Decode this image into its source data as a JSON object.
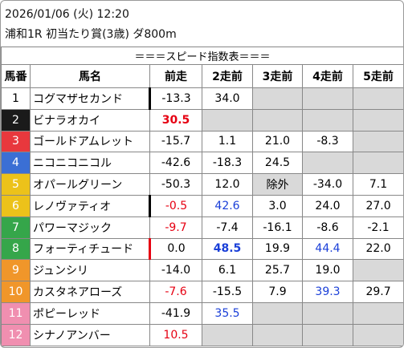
{
  "header": {
    "date": "2026/01/06 (火) 12:20",
    "race": "浦和1R 初当たり賞(3歳) ダ800m"
  },
  "table": {
    "title": "＝＝＝スピード指数表＝＝＝",
    "columns": [
      "馬番",
      "馬名",
      "前走",
      "2走前",
      "3走前",
      "4走前",
      "5走前"
    ],
    "rows": [
      {
        "number": "1",
        "frame_color": "#ffffff",
        "number_color": "#000000",
        "name": "コグマザセカンド",
        "marker": "#000000",
        "speeds": [
          "-13.3",
          "34.0",
          null,
          null,
          null
        ]
      },
      {
        "number": "2",
        "frame_color": "#1a1a1a",
        "number_color": "#ffffff",
        "name": "ビナラオカイ",
        "speeds": [
          {
            "text": "30.5",
            "color": "#e60012",
            "bold": true
          },
          null,
          null,
          null,
          null
        ]
      },
      {
        "number": "3",
        "frame_color": "#e8383d",
        "number_color": "#ffffff",
        "name": "ゴールドアムレット",
        "speeds": [
          "-15.7",
          "1.1",
          "21.0",
          "-8.3",
          null
        ]
      },
      {
        "number": "4",
        "frame_color": "#3b6fd4",
        "number_color": "#ffffff",
        "name": "ニコニコニコル",
        "speeds": [
          "-42.6",
          "-18.3",
          "24.5",
          null,
          null
        ]
      },
      {
        "number": "5",
        "frame_color": "#ecc21a",
        "number_color": "#ffffff",
        "name": "オパールグリーン",
        "speeds": [
          "-50.3",
          "12.0",
          {
            "text": "除外",
            "shaded": true
          },
          "-34.0",
          "7.1"
        ]
      },
      {
        "number": "6",
        "frame_color": "#ecc21a",
        "number_color": "#ffffff",
        "name": "レノヴァティオ",
        "marker": "#000000",
        "speeds": [
          {
            "text": "-0.5",
            "color": "#e60012"
          },
          {
            "text": "42.6",
            "color": "#1a3fd8"
          },
          "3.0",
          "24.0",
          "27.0"
        ]
      },
      {
        "number": "7",
        "frame_color": "#35a64a",
        "number_color": "#ffffff",
        "name": "パワーマジック",
        "speeds": [
          {
            "text": "-9.7",
            "color": "#e60012"
          },
          "-7.4",
          "-16.1",
          "-8.6",
          "-2.1"
        ]
      },
      {
        "number": "8",
        "frame_color": "#35a64a",
        "number_color": "#ffffff",
        "name": "フォーティチュード",
        "marker": "#e60012",
        "speeds": [
          "0.0",
          {
            "text": "48.5",
            "color": "#1a3fd8",
            "bold": true
          },
          "19.9",
          {
            "text": "44.4",
            "color": "#1a3fd8"
          },
          "22.0"
        ]
      },
      {
        "number": "9",
        "frame_color": "#f0962a",
        "number_color": "#ffffff",
        "name": "ジュンシリ",
        "speeds": [
          "-14.0",
          "6.1",
          "25.7",
          "19.0",
          null
        ]
      },
      {
        "number": "10",
        "frame_color": "#f0962a",
        "number_color": "#ffffff",
        "name": "カスタネアローズ",
        "speeds": [
          {
            "text": "-7.6",
            "color": "#e60012"
          },
          "-15.5",
          "7.9",
          {
            "text": "39.3",
            "color": "#1a3fd8"
          },
          "29.7"
        ]
      },
      {
        "number": "11",
        "frame_color": "#f08fb0",
        "number_color": "#ffffff",
        "name": "ポピーレッド",
        "speeds": [
          "-41.9",
          {
            "text": "35.5",
            "color": "#1a3fd8"
          },
          null,
          null,
          null
        ]
      },
      {
        "number": "12",
        "frame_color": "#f08fb0",
        "number_color": "#ffffff",
        "name": "シナノアンバー",
        "speeds": [
          {
            "text": "10.5",
            "color": "#e60012"
          },
          null,
          null,
          null,
          null
        ]
      }
    ]
  }
}
